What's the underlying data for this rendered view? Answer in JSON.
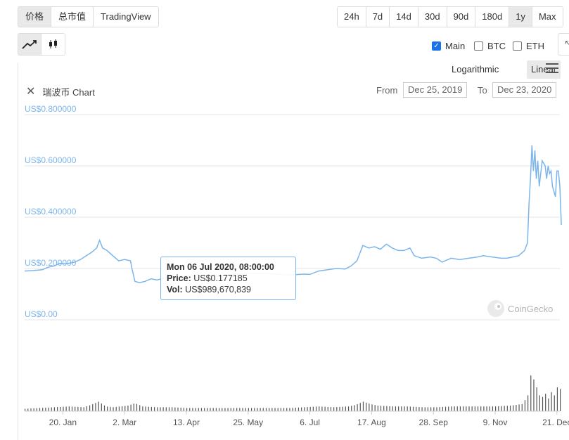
{
  "tabs": [
    "价格",
    "总市值",
    "TradingView"
  ],
  "active_tab": "价格",
  "ranges": [
    "24h",
    "7d",
    "14d",
    "30d",
    "90d",
    "180d",
    "1y",
    "Max"
  ],
  "active_range": "1y",
  "chart_types": [
    {
      "name": "line-chart-icon"
    },
    {
      "name": "candlestick-icon"
    }
  ],
  "series_toggles": [
    {
      "label": "Main",
      "checked": true
    },
    {
      "label": "BTC",
      "checked": false
    },
    {
      "label": "ETH",
      "checked": false
    }
  ],
  "scale": {
    "logarithmic": "Logarithmic",
    "linear": "Linear",
    "active": "Linear"
  },
  "chart_title": "瑞波币 Chart",
  "date_range": {
    "from_label": "From",
    "from": "Dec 25, 2019",
    "to_label": "To",
    "to": "Dec 23, 2020"
  },
  "watermark": "CoinGecko",
  "tooltip": {
    "date": "Mon 06 Jul 2020, 08:00:00",
    "price_label": "Price:",
    "price": "US$0.177185",
    "vol_label": "Vol:",
    "vol": "US$989,670,839"
  },
  "colors": {
    "line": "#7cb5ec",
    "volume": "#555555",
    "grid": "#e6e6e6",
    "axis_label": "#7cb5ec"
  },
  "chart_data": {
    "type": "line",
    "y_ticks": [
      "US$0.00",
      "US$0.200000",
      "US$0.400000",
      "US$0.600000",
      "US$0.800000"
    ],
    "y_tick_values": [
      0,
      0.2,
      0.4,
      0.6,
      0.8
    ],
    "ylim": [
      0,
      0.8
    ],
    "x_ticks": [
      "20. Jan",
      "2. Mar",
      "13. Apr",
      "25. May",
      "6. Jul",
      "17. Aug",
      "28. Sep",
      "9. Nov",
      "21. Dec"
    ],
    "x_tick_days": [
      26,
      68,
      110,
      152,
      194,
      236,
      278,
      320,
      362
    ],
    "x_range_days": [
      0,
      364
    ],
    "price_series": [
      [
        0,
        0.19
      ],
      [
        6,
        0.192
      ],
      [
        12,
        0.195
      ],
      [
        16,
        0.205
      ],
      [
        20,
        0.21
      ],
      [
        24,
        0.22
      ],
      [
        28,
        0.218
      ],
      [
        34,
        0.225
      ],
      [
        38,
        0.235
      ],
      [
        42,
        0.25
      ],
      [
        46,
        0.265
      ],
      [
        49,
        0.28
      ],
      [
        51,
        0.31
      ],
      [
        53,
        0.28
      ],
      [
        56,
        0.27
      ],
      [
        60,
        0.25
      ],
      [
        64,
        0.23
      ],
      [
        68,
        0.235
      ],
      [
        72,
        0.23
      ],
      [
        73,
        0.2
      ],
      [
        75,
        0.15
      ],
      [
        78,
        0.145
      ],
      [
        82,
        0.15
      ],
      [
        86,
        0.16
      ],
      [
        90,
        0.155
      ],
      [
        96,
        0.165
      ],
      [
        100,
        0.168
      ],
      [
        106,
        0.17
      ],
      [
        112,
        0.172
      ],
      [
        118,
        0.175
      ],
      [
        124,
        0.172
      ],
      [
        130,
        0.17
      ],
      [
        136,
        0.175
      ],
      [
        142,
        0.178
      ],
      [
        148,
        0.18
      ],
      [
        154,
        0.18
      ],
      [
        160,
        0.182
      ],
      [
        166,
        0.18
      ],
      [
        172,
        0.178
      ],
      [
        178,
        0.175
      ],
      [
        184,
        0.176
      ],
      [
        190,
        0.178
      ],
      [
        194,
        0.177
      ],
      [
        200,
        0.19
      ],
      [
        206,
        0.195
      ],
      [
        212,
        0.2
      ],
      [
        218,
        0.198
      ],
      [
        222,
        0.21
      ],
      [
        226,
        0.23
      ],
      [
        230,
        0.29
      ],
      [
        234,
        0.28
      ],
      [
        238,
        0.285
      ],
      [
        242,
        0.275
      ],
      [
        246,
        0.295
      ],
      [
        250,
        0.28
      ],
      [
        254,
        0.27
      ],
      [
        258,
        0.27
      ],
      [
        262,
        0.28
      ],
      [
        265,
        0.25
      ],
      [
        270,
        0.24
      ],
      [
        276,
        0.245
      ],
      [
        280,
        0.24
      ],
      [
        284,
        0.225
      ],
      [
        290,
        0.24
      ],
      [
        296,
        0.235
      ],
      [
        302,
        0.24
      ],
      [
        308,
        0.245
      ],
      [
        312,
        0.25
      ],
      [
        318,
        0.245
      ],
      [
        324,
        0.24
      ],
      [
        328,
        0.24
      ],
      [
        332,
        0.245
      ],
      [
        336,
        0.25
      ],
      [
        340,
        0.27
      ],
      [
        342,
        0.3
      ],
      [
        343,
        0.45
      ],
      [
        344,
        0.55
      ],
      [
        345,
        0.68
      ],
      [
        346,
        0.58
      ],
      [
        347,
        0.66
      ],
      [
        348,
        0.55
      ],
      [
        349,
        0.62
      ],
      [
        350,
        0.52
      ],
      [
        352,
        0.62
      ],
      [
        354,
        0.6
      ],
      [
        355,
        0.55
      ],
      [
        356,
        0.6
      ],
      [
        357,
        0.57
      ],
      [
        358,
        0.58
      ],
      [
        359,
        0.52
      ],
      [
        360,
        0.5
      ],
      [
        361,
        0.48
      ],
      [
        362,
        0.58
      ],
      [
        363,
        0.58
      ],
      [
        364,
        0.52
      ],
      [
        365,
        0.37
      ]
    ],
    "volume_series": [
      [
        0,
        3
      ],
      [
        10,
        4
      ],
      [
        20,
        5
      ],
      [
        30,
        6
      ],
      [
        40,
        5
      ],
      [
        45,
        8
      ],
      [
        50,
        12
      ],
      [
        55,
        6
      ],
      [
        60,
        5
      ],
      [
        70,
        7
      ],
      [
        73,
        9
      ],
      [
        75,
        10
      ],
      [
        80,
        6
      ],
      [
        90,
        5
      ],
      [
        100,
        5
      ],
      [
        110,
        4
      ],
      [
        120,
        4
      ],
      [
        130,
        4
      ],
      [
        140,
        4
      ],
      [
        150,
        4
      ],
      [
        160,
        4
      ],
      [
        170,
        4
      ],
      [
        180,
        4
      ],
      [
        190,
        5
      ],
      [
        200,
        6
      ],
      [
        210,
        5
      ],
      [
        220,
        6
      ],
      [
        225,
        8
      ],
      [
        230,
        12
      ],
      [
        235,
        9
      ],
      [
        240,
        7
      ],
      [
        250,
        6
      ],
      [
        260,
        6
      ],
      [
        270,
        5
      ],
      [
        280,
        5
      ],
      [
        290,
        6
      ],
      [
        300,
        6
      ],
      [
        310,
        6
      ],
      [
        320,
        6
      ],
      [
        330,
        7
      ],
      [
        338,
        9
      ],
      [
        340,
        14
      ],
      [
        342,
        20
      ],
      [
        343,
        28
      ],
      [
        344,
        45
      ],
      [
        345,
        60
      ],
      [
        346,
        40
      ],
      [
        347,
        35
      ],
      [
        348,
        30
      ],
      [
        349,
        25
      ],
      [
        350,
        20
      ],
      [
        352,
        18
      ],
      [
        354,
        22
      ],
      [
        356,
        16
      ],
      [
        358,
        24
      ],
      [
        360,
        20
      ],
      [
        362,
        30
      ],
      [
        363,
        25
      ],
      [
        364,
        28
      ]
    ]
  }
}
